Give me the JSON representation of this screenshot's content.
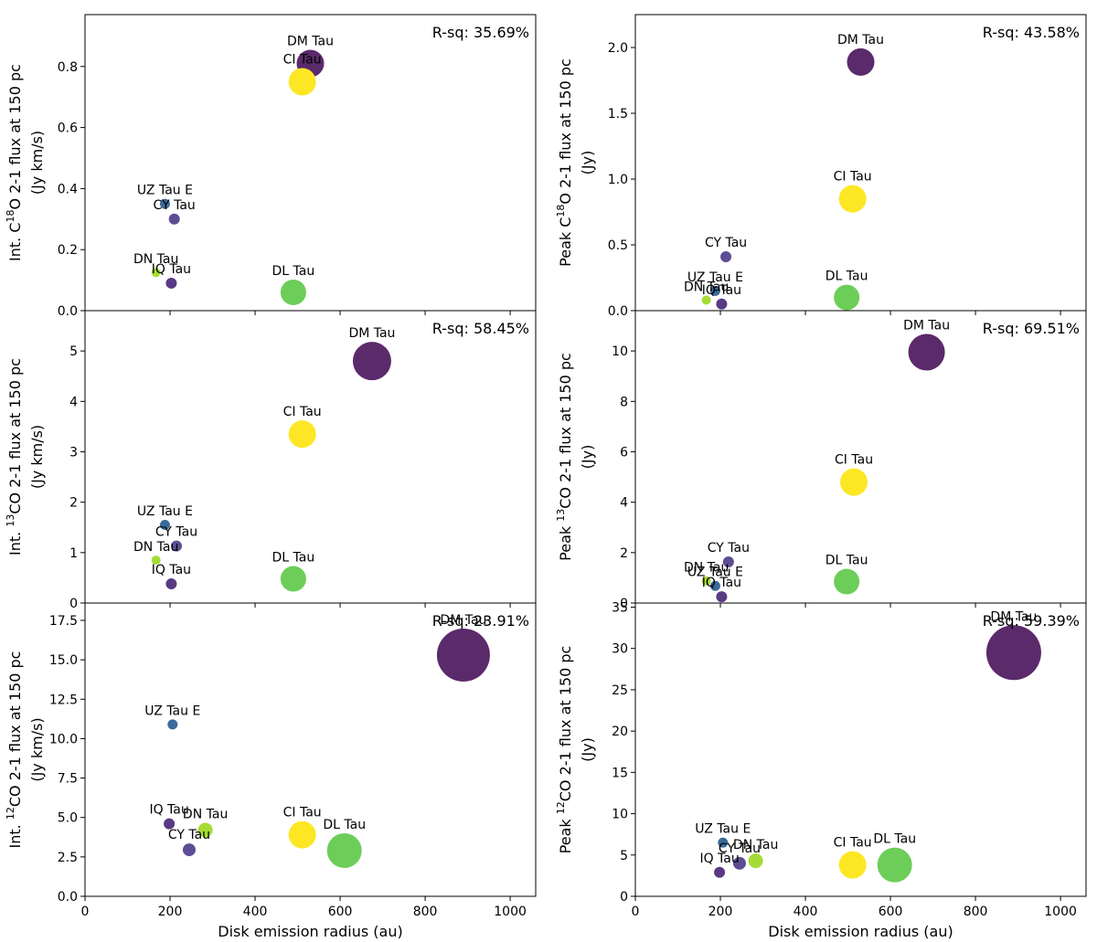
{
  "figure": {
    "xlabel": "Disk emission radius (au)",
    "x_ticks": [
      0,
      200,
      400,
      600,
      800,
      1000
    ],
    "x_tick_labels": [
      "0",
      "200",
      "400",
      "600",
      "800",
      "1000"
    ],
    "xlim": [
      0,
      1060
    ]
  },
  "series_colors": {
    "DM Tau": "#5b2a6b",
    "CI Tau": "#fde725",
    "DL Tau": "#6cce59",
    "DN Tau": "#a5db36",
    "UZ Tau E": "#3b6a9a",
    "CY Tau": "#5d4d94",
    "IQ Tau": "#5a3a84"
  },
  "chart_data": [
    {
      "id": "c18o-int",
      "type": "scatter",
      "row": 0,
      "col": 0,
      "ylabel_lines": [
        [
          "Int. C",
          "18",
          "O 2-1 flux at 150 pc"
        ],
        [
          "(Jy km/s)"
        ]
      ],
      "ylim": [
        0,
        0.97
      ],
      "y_ticks": [
        0,
        0.2,
        0.4,
        0.6,
        0.8
      ],
      "y_tick_labels": [
        "0.0",
        "0.2",
        "0.4",
        "0.6",
        "0.8"
      ],
      "rsq": "R-sq: 35.69%",
      "points": [
        {
          "name": "DM Tau",
          "x": 530,
          "y": 0.81,
          "size": 30
        },
        {
          "name": "CI Tau",
          "x": 511,
          "y": 0.75,
          "size": 30
        },
        {
          "name": "UZ Tau E",
          "x": 188,
          "y": 0.35,
          "size": 11
        },
        {
          "name": "CY Tau",
          "x": 210,
          "y": 0.3,
          "size": 12
        },
        {
          "name": "DN Tau",
          "x": 167,
          "y": 0.125,
          "size": 10
        },
        {
          "name": "IQ Tau",
          "x": 203,
          "y": 0.09,
          "size": 12
        },
        {
          "name": "DL Tau",
          "x": 490,
          "y": 0.06,
          "size": 28
        }
      ]
    },
    {
      "id": "c18o-peak",
      "type": "scatter",
      "row": 0,
      "col": 1,
      "ylabel_lines": [
        [
          "Peak C",
          "18",
          "O 2-1 flux at 150 pc"
        ],
        [
          "(Jy)"
        ]
      ],
      "ylim": [
        0,
        2.25
      ],
      "y_ticks": [
        0,
        0.5,
        1.0,
        1.5,
        2.0
      ],
      "y_tick_labels": [
        "0.0",
        "0.5",
        "1.0",
        "1.5",
        "2.0"
      ],
      "rsq": "R-sq: 43.58%",
      "points": [
        {
          "name": "DM Tau",
          "x": 530,
          "y": 1.89,
          "size": 30
        },
        {
          "name": "CI Tau",
          "x": 511,
          "y": 0.85,
          "size": 30
        },
        {
          "name": "CY Tau",
          "x": 213,
          "y": 0.41,
          "size": 12
        },
        {
          "name": "UZ Tau E",
          "x": 188,
          "y": 0.15,
          "size": 11
        },
        {
          "name": "DN Tau",
          "x": 167,
          "y": 0.08,
          "size": 10
        },
        {
          "name": "IQ Tau",
          "x": 203,
          "y": 0.05,
          "size": 12
        },
        {
          "name": "DL Tau",
          "x": 497,
          "y": 0.1,
          "size": 28
        }
      ]
    },
    {
      "id": "13co-int",
      "type": "scatter",
      "row": 1,
      "col": 0,
      "ylabel_lines": [
        [
          "Int. ",
          "13",
          "CO 2-1 flux at 150 pc"
        ],
        [
          "(Jy km/s)"
        ]
      ],
      "ylim": [
        0,
        5.8
      ],
      "y_ticks": [
        0,
        1,
        2,
        3,
        4,
        5
      ],
      "y_tick_labels": [
        "0",
        "1",
        "2",
        "3",
        "4",
        "5"
      ],
      "rsq": "R-sq: 58.45%",
      "points": [
        {
          "name": "DM Tau",
          "x": 675,
          "y": 4.8,
          "size": 42
        },
        {
          "name": "CI Tau",
          "x": 511,
          "y": 3.35,
          "size": 30
        },
        {
          "name": "UZ Tau E",
          "x": 188,
          "y": 1.55,
          "size": 11
        },
        {
          "name": "CY Tau",
          "x": 215,
          "y": 1.13,
          "size": 12
        },
        {
          "name": "DN Tau",
          "x": 167,
          "y": 0.85,
          "size": 10
        },
        {
          "name": "IQ Tau",
          "x": 203,
          "y": 0.38,
          "size": 12
        },
        {
          "name": "DL Tau",
          "x": 490,
          "y": 0.48,
          "size": 28
        }
      ]
    },
    {
      "id": "13co-peak",
      "type": "scatter",
      "row": 1,
      "col": 1,
      "ylabel_lines": [
        [
          "Peak ",
          "13",
          "CO 2-1 flux at 150 pc"
        ],
        [
          "(Jy)"
        ]
      ],
      "ylim": [
        0,
        11.6
      ],
      "y_ticks": [
        0,
        2,
        4,
        6,
        8,
        10
      ],
      "y_tick_labels": [
        "0",
        "2",
        "4",
        "6",
        "8",
        "10"
      ],
      "rsq": "R-sq: 69.51%",
      "points": [
        {
          "name": "DM Tau",
          "x": 685,
          "y": 9.95,
          "size": 40
        },
        {
          "name": "CI Tau",
          "x": 514,
          "y": 4.8,
          "size": 30
        },
        {
          "name": "CY Tau",
          "x": 219,
          "y": 1.63,
          "size": 12
        },
        {
          "name": "DN Tau",
          "x": 167,
          "y": 0.88,
          "size": 10
        },
        {
          "name": "UZ Tau E",
          "x": 188,
          "y": 0.68,
          "size": 11
        },
        {
          "name": "IQ Tau",
          "x": 203,
          "y": 0.25,
          "size": 12
        },
        {
          "name": "DL Tau",
          "x": 497,
          "y": 0.85,
          "size": 28
        }
      ]
    },
    {
      "id": "12co-int",
      "type": "scatter",
      "row": 2,
      "col": 0,
      "ylabel_lines": [
        [
          "Int. ",
          "12",
          "CO 2-1 flux at 150 pc"
        ],
        [
          "(Jy km/s)"
        ]
      ],
      "ylim": [
        0,
        18.6
      ],
      "y_ticks": [
        0,
        2.5,
        5.0,
        7.5,
        10.0,
        12.5,
        15.0,
        17.5
      ],
      "y_tick_labels": [
        "0.0",
        "2.5",
        "5.0",
        "7.5",
        "10.0",
        "12.5",
        "15.0",
        "17.5"
      ],
      "rsq": "R-sq: 23.91%",
      "points": [
        {
          "name": "DM Tau",
          "x": 890,
          "y": 15.3,
          "size": 58
        },
        {
          "name": "UZ Tau E",
          "x": 206,
          "y": 10.9,
          "size": 11
        },
        {
          "name": "IQ Tau",
          "x": 198,
          "y": 4.6,
          "size": 12
        },
        {
          "name": "DN Tau",
          "x": 283,
          "y": 4.2,
          "size": 16
        },
        {
          "name": "CY Tau",
          "x": 245,
          "y": 2.95,
          "size": 14
        },
        {
          "name": "CI Tau",
          "x": 511,
          "y": 3.9,
          "size": 30
        },
        {
          "name": "DL Tau",
          "x": 610,
          "y": 2.9,
          "size": 38
        }
      ]
    },
    {
      "id": "12co-peak",
      "type": "scatter",
      "row": 2,
      "col": 1,
      "ylabel_lines": [
        [
          "Peak ",
          "12",
          "CO 2-1 flux at 150 pc"
        ],
        [
          "(Jy)"
        ]
      ],
      "ylim": [
        0,
        35.5
      ],
      "y_ticks": [
        0,
        5,
        10,
        15,
        20,
        25,
        30,
        35
      ],
      "y_tick_labels": [
        "0",
        "5",
        "10",
        "15",
        "20",
        "25",
        "30",
        "35"
      ],
      "rsq": "R-sq: 59.39%",
      "points": [
        {
          "name": "DM Tau",
          "x": 890,
          "y": 29.5,
          "size": 60
        },
        {
          "name": "UZ Tau E",
          "x": 206,
          "y": 6.5,
          "size": 11
        },
        {
          "name": "CY Tau",
          "x": 245,
          "y": 4.0,
          "size": 14
        },
        {
          "name": "DN Tau",
          "x": 283,
          "y": 4.3,
          "size": 16
        },
        {
          "name": "IQ Tau",
          "x": 198,
          "y": 2.9,
          "size": 12
        },
        {
          "name": "CI Tau",
          "x": 511,
          "y": 3.8,
          "size": 30
        },
        {
          "name": "DL Tau",
          "x": 610,
          "y": 3.8,
          "size": 38
        }
      ]
    }
  ]
}
